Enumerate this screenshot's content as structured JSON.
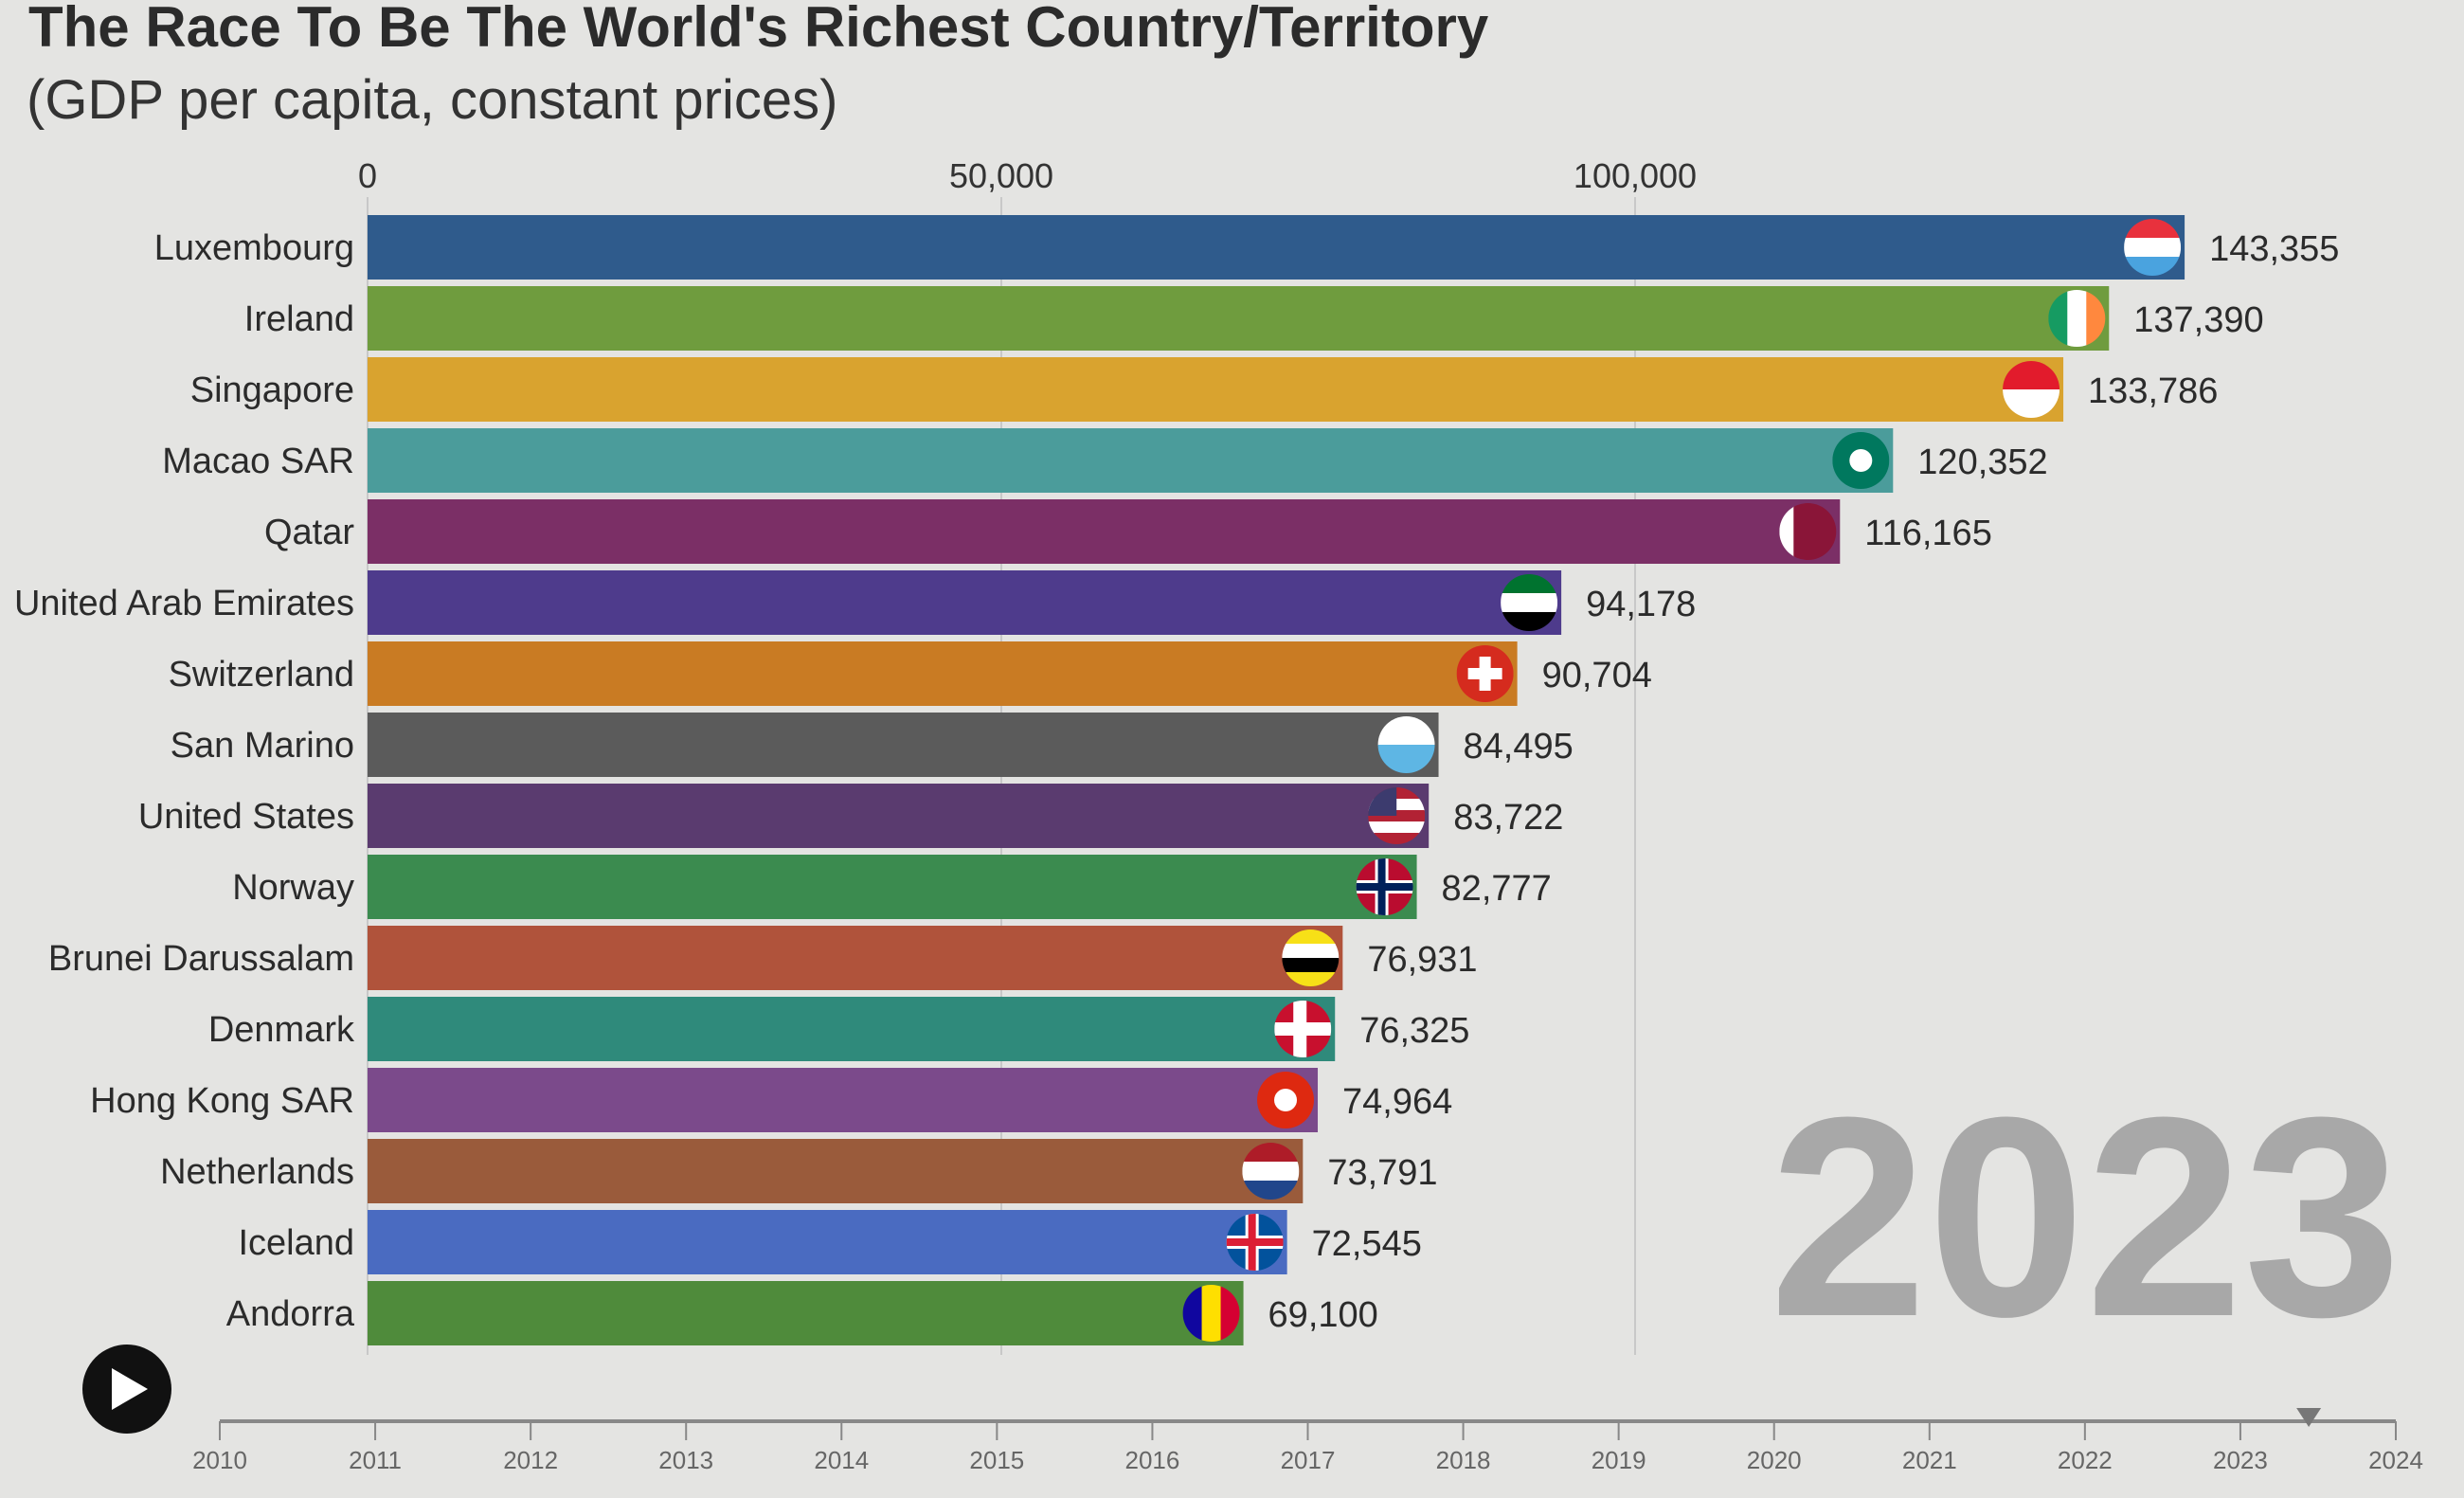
{
  "title": "The Race To Be The World's Richest Country/Territory",
  "subtitle": "(GDP per capita, constant prices)",
  "chart_data": {
    "type": "bar",
    "orientation": "horizontal",
    "title": "The Race To Be The World's Richest Country/Territory",
    "subtitle": "(GDP per capita, constant prices)",
    "current_year": "2023",
    "categories": [
      "Luxembourg",
      "Ireland",
      "Singapore",
      "Macao SAR",
      "Qatar",
      "United Arab Emirates",
      "Switzerland",
      "San Marino",
      "United States",
      "Norway",
      "Brunei Darussalam",
      "Denmark",
      "Hong Kong SAR",
      "Netherlands",
      "Iceland",
      "Andorra"
    ],
    "values": [
      143355,
      137390,
      133786,
      120352,
      116165,
      94178,
      90704,
      84495,
      83722,
      82777,
      76931,
      76325,
      74964,
      73791,
      72545,
      69100
    ],
    "value_labels": [
      "143,355",
      "137,390",
      "133,786",
      "120,352",
      "116,165",
      "94,178",
      "90,704",
      "84,495",
      "83,722",
      "82,777",
      "76,931",
      "76,325",
      "74,964",
      "73,791",
      "72,545",
      "69,100"
    ],
    "colors": [
      "#2f5b8c",
      "#6f9c3e",
      "#d9a32f",
      "#4b9c9b",
      "#7b2f66",
      "#4e3b8c",
      "#c97b23",
      "#5b5b5b",
      "#5a3b6f",
      "#3b8b4f",
      "#b0533b",
      "#2f8a7b",
      "#7b4a8b",
      "#9a5b3b",
      "#4a6bc1",
      "#4f8b3b"
    ],
    "flags": [
      {
        "icon": "luxembourg-flag-icon",
        "stripes": [
          "#e8313d",
          "#ffffff",
          "#4aa3df"
        ],
        "dir": "h"
      },
      {
        "icon": "ireland-flag-icon",
        "stripes": [
          "#169b62",
          "#ffffff",
          "#ff883e"
        ],
        "dir": "v"
      },
      {
        "icon": "singapore-flag-icon",
        "stripes": [
          "#e21b2c",
          "#ffffff"
        ],
        "dir": "h"
      },
      {
        "icon": "macao-flag-icon",
        "stripes": [
          "#00785e"
        ],
        "dir": "h"
      },
      {
        "icon": "qatar-flag-icon",
        "stripes": [
          "#ffffff",
          "#8a1538",
          "#8a1538",
          "#8a1538"
        ],
        "dir": "v"
      },
      {
        "icon": "uae-flag-icon",
        "stripes": [
          "#00732f",
          "#ffffff",
          "#000000"
        ],
        "dir": "h"
      },
      {
        "icon": "switzerland-flag-icon",
        "stripes": [
          "#d52b1e"
        ],
        "dir": "h"
      },
      {
        "icon": "san-marino-flag-icon",
        "stripes": [
          "#ffffff",
          "#5eb6e4"
        ],
        "dir": "h"
      },
      {
        "icon": "united-states-flag-icon",
        "stripes": [
          "#b22234",
          "#ffffff",
          "#b22234",
          "#ffffff",
          "#b22234"
        ],
        "dir": "h"
      },
      {
        "icon": "norway-flag-icon",
        "stripes": [
          "#ba0c2f"
        ],
        "dir": "h"
      },
      {
        "icon": "brunei-flag-icon",
        "stripes": [
          "#f7e017",
          "#ffffff",
          "#000000",
          "#f7e017"
        ],
        "dir": "h"
      },
      {
        "icon": "denmark-flag-icon",
        "stripes": [
          "#c8102e"
        ],
        "dir": "h"
      },
      {
        "icon": "hong-kong-flag-icon",
        "stripes": [
          "#de2910"
        ],
        "dir": "h"
      },
      {
        "icon": "netherlands-flag-icon",
        "stripes": [
          "#ae1c28",
          "#ffffff",
          "#21468b"
        ],
        "dir": "h"
      },
      {
        "icon": "iceland-flag-icon",
        "stripes": [
          "#02529c"
        ],
        "dir": "h"
      },
      {
        "icon": "andorra-flag-icon",
        "stripes": [
          "#10069f",
          "#fedf00",
          "#d50032"
        ],
        "dir": "v"
      }
    ],
    "xaxis": {
      "ticks": [
        0,
        50000,
        100000
      ],
      "tick_labels": [
        "0",
        "50,000",
        "100,000"
      ],
      "position": "top",
      "grid": true
    },
    "xlim": [
      0,
      150000
    ],
    "timeline": {
      "years": [
        "2010",
        "2011",
        "2012",
        "2013",
        "2014",
        "2015",
        "2016",
        "2017",
        "2018",
        "2019",
        "2020",
        "2021",
        "2022",
        "2023",
        "2024"
      ],
      "position": 0.96
    }
  }
}
